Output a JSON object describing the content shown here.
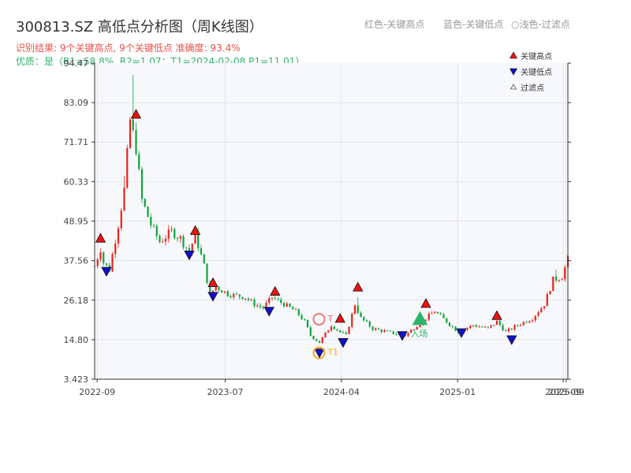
{
  "header": {
    "title": "300813.SZ 高低点分析图（周K线图）",
    "result_line": "识别结果: 9个关键高点, 9个关键低点  准确度: 93.4%",
    "quality_line": "优质：是（R1=58.8%, R2=1.07；T1=2024-02-08 P1=11.01）"
  },
  "legend_top": {
    "red_note": "红色-关键高点",
    "blue_note": "蓝色-关键低点",
    "light_note": "○浅色-过滤点"
  },
  "legend_box": {
    "high": "关键高点",
    "low": "关键低点",
    "filtered": "过滤点"
  },
  "annotations": {
    "t1_label": "T1",
    "t1_top_label": "T",
    "entry_label": "入场"
  },
  "colors": {
    "up": "#e8231c",
    "down": "#12a23c",
    "high_marker": "#ee1111",
    "low_marker": "#1111cc",
    "t1": "#f5a623",
    "entry": "#2fb36b",
    "plot_bg": "#f7f8fb",
    "grid": "#dcdfe6"
  },
  "chart_data": {
    "type": "candlestick",
    "title": "300813.SZ 高低点分析图（周K线图）",
    "x_range": [
      "2022-08-26",
      "2025-09-19"
    ],
    "ylim": [
      3.423,
      94.47
    ],
    "y_ticks": [
      3.423,
      14.8,
      26.18,
      37.56,
      48.95,
      60.33,
      71.71,
      83.09,
      94.47
    ],
    "x_ticks": [
      {
        "date": "2022-09-01",
        "label": "2022-09"
      },
      {
        "date": "2023-07-01",
        "label": "2023-07"
      },
      {
        "date": "2024-04-01",
        "label": "2024-04"
      },
      {
        "date": "2025-01-01",
        "label": "2025-01"
      },
      {
        "date": "2025-09-08",
        "label": "2025-09"
      },
      {
        "date": "2025-09-15",
        "label": "2025-09"
      }
    ],
    "anchors": [
      [
        "2022-08-26",
        36
      ],
      [
        "2022-09-09",
        41
      ],
      [
        "2022-09-16",
        37
      ],
      [
        "2022-09-30",
        35
      ],
      [
        "2022-10-21",
        48
      ],
      [
        "2022-11-04",
        58
      ],
      [
        "2022-11-18",
        78
      ],
      [
        "2022-12-02",
        70
      ],
      [
        "2022-12-16",
        55
      ],
      [
        "2023-01-06",
        48
      ],
      [
        "2023-01-27",
        43
      ],
      [
        "2023-02-24",
        46
      ],
      [
        "2023-03-17",
        44
      ],
      [
        "2023-04-07",
        40
      ],
      [
        "2023-04-21",
        45
      ],
      [
        "2023-05-12",
        36
      ],
      [
        "2023-05-26",
        28
      ],
      [
        "2023-06-09",
        30
      ],
      [
        "2023-07-07",
        28
      ],
      [
        "2023-08-18",
        27
      ],
      [
        "2023-09-08",
        25
      ],
      [
        "2023-09-29",
        24
      ],
      [
        "2023-10-20",
        27
      ],
      [
        "2023-11-17",
        25
      ],
      [
        "2023-12-15",
        23
      ],
      [
        "2024-01-05",
        20
      ],
      [
        "2024-01-19",
        16
      ],
      [
        "2024-02-09",
        14
      ],
      [
        "2024-03-08",
        19
      ],
      [
        "2024-03-29",
        17
      ],
      [
        "2024-04-12",
        16
      ],
      [
        "2024-05-03",
        25
      ],
      [
        "2024-05-17",
        21
      ],
      [
        "2024-06-14",
        18
      ],
      [
        "2024-07-19",
        17
      ],
      [
        "2024-08-30",
        16
      ],
      [
        "2024-09-27",
        19
      ],
      [
        "2024-10-18",
        21
      ],
      [
        "2024-11-08",
        23
      ],
      [
        "2024-12-06",
        20
      ],
      [
        "2025-01-03",
        17
      ],
      [
        "2025-02-07",
        19
      ],
      [
        "2025-03-14",
        18
      ],
      [
        "2025-04-04",
        20
      ],
      [
        "2025-04-25",
        17
      ],
      [
        "2025-05-23",
        19
      ],
      [
        "2025-06-27",
        21
      ],
      [
        "2025-07-25",
        25
      ],
      [
        "2025-08-15",
        32
      ],
      [
        "2025-09-05",
        33
      ],
      [
        "2025-09-19",
        38
      ]
    ],
    "spikes": [
      [
        "2022-11-25",
        91
      ],
      [
        "2022-11-18",
        70
      ],
      [
        "2022-12-02",
        74
      ],
      [
        "2022-11-04",
        62
      ],
      [
        "2024-05-10",
        27
      ],
      [
        "2025-08-22",
        35
      ],
      [
        "2025-09-19",
        41
      ]
    ],
    "key_highs": [
      [
        "2022-09-09",
        43.8
      ],
      [
        "2022-12-02",
        79.5
      ],
      [
        "2023-04-21",
        46.0
      ],
      [
        "2023-06-02",
        31.0
      ],
      [
        "2023-10-27",
        28.5
      ],
      [
        "2024-03-29",
        20.7
      ],
      [
        "2024-05-10",
        29.7
      ],
      [
        "2024-10-18",
        25.0
      ],
      [
        "2025-04-04",
        21.5
      ]
    ],
    "key_lows": [
      [
        "2022-09-23",
        34.5
      ],
      [
        "2023-04-07",
        39.2
      ],
      [
        "2023-06-02",
        27.3
      ],
      [
        "2023-10-13",
        23.0
      ],
      [
        "2024-02-09",
        11.0
      ],
      [
        "2024-04-05",
        14.0
      ],
      [
        "2024-08-23",
        16.0
      ],
      [
        "2025-01-10",
        16.8
      ],
      [
        "2025-05-09",
        14.8
      ]
    ],
    "t1": {
      "date": "2024-02-08",
      "price": 11.01
    },
    "t_top": {
      "date": "2024-02-08",
      "price": 20.7
    },
    "entry": {
      "date": "2024-10-04",
      "price": 20.5
    }
  }
}
